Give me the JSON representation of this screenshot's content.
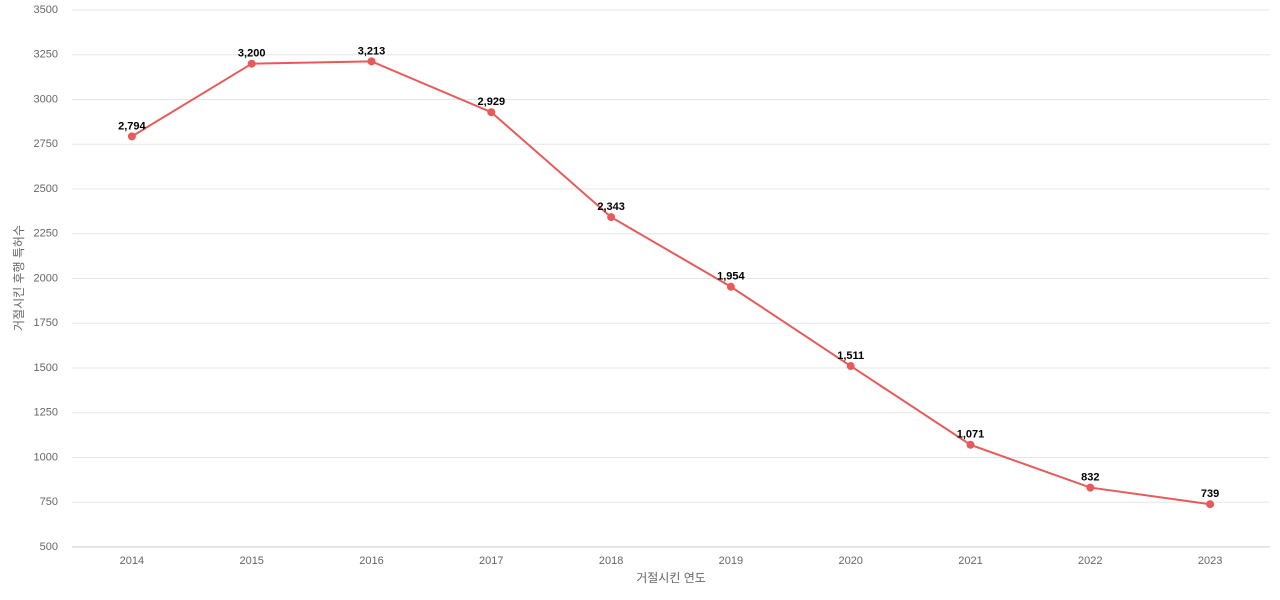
{
  "chart_data": {
    "type": "line",
    "x_label": "거절시킨 연도",
    "y_label": "거절시킨 후행 특허수",
    "categories": [
      "2014",
      "2015",
      "2016",
      "2017",
      "2018",
      "2019",
      "2020",
      "2021",
      "2022",
      "2023"
    ],
    "series": [
      {
        "color": "#e85a5a",
        "values": [
          2794,
          3200,
          3213,
          2929,
          2343,
          1954,
          1511,
          1071,
          832,
          739
        ],
        "value_labels": [
          "2,794",
          "3,200",
          "3,213",
          "2,929",
          "2,343",
          "1,954",
          "1,511",
          "1,071",
          "832",
          "739"
        ]
      }
    ],
    "ylim": [
      500,
      3500
    ],
    "yticks": [
      500,
      750,
      1000,
      1250,
      1500,
      1750,
      2000,
      2250,
      2500,
      2750,
      3000,
      3250,
      3500
    ],
    "grid": true
  }
}
